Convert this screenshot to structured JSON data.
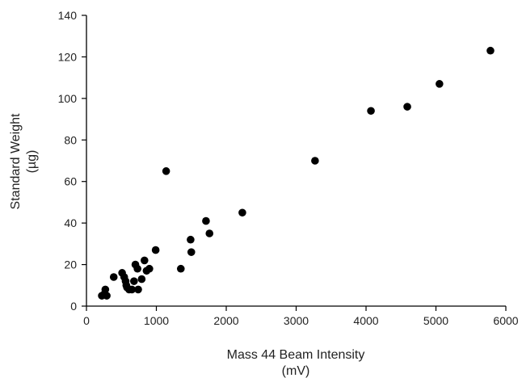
{
  "chart_data": {
    "type": "scatter",
    "title": "",
    "xlabel": "Mass 44 Beam Intensity",
    "xlabel_unit": "(mV)",
    "ylabel": "Standard Weight",
    "ylabel_unit": "(µg)",
    "xlim": [
      0,
      6000
    ],
    "ylim": [
      0,
      140
    ],
    "xticks": [
      0,
      1000,
      2000,
      3000,
      4000,
      5000,
      6000
    ],
    "yticks": [
      0,
      20,
      40,
      60,
      80,
      100,
      120,
      140
    ],
    "grid": false,
    "legend": "none",
    "marker_color": "#000000",
    "series": [
      {
        "points": [
          [
            220,
            5
          ],
          [
            260,
            6
          ],
          [
            270,
            8
          ],
          [
            290,
            5
          ],
          [
            390,
            14
          ],
          [
            510,
            16
          ],
          [
            540,
            14
          ],
          [
            560,
            12
          ],
          [
            570,
            10
          ],
          [
            580,
            9
          ],
          [
            610,
            8
          ],
          [
            650,
            8
          ],
          [
            680,
            12
          ],
          [
            700,
            20
          ],
          [
            730,
            18
          ],
          [
            740,
            8
          ],
          [
            790,
            13
          ],
          [
            830,
            22
          ],
          [
            860,
            17
          ],
          [
            900,
            18
          ],
          [
            990,
            27
          ],
          [
            1140,
            65
          ],
          [
            1350,
            18
          ],
          [
            1490,
            32
          ],
          [
            1500,
            26
          ],
          [
            1710,
            41
          ],
          [
            1760,
            35
          ],
          [
            2230,
            45
          ],
          [
            3270,
            70
          ],
          [
            4070,
            94
          ],
          [
            4590,
            96
          ],
          [
            5050,
            107
          ],
          [
            5780,
            123
          ]
        ]
      }
    ]
  }
}
